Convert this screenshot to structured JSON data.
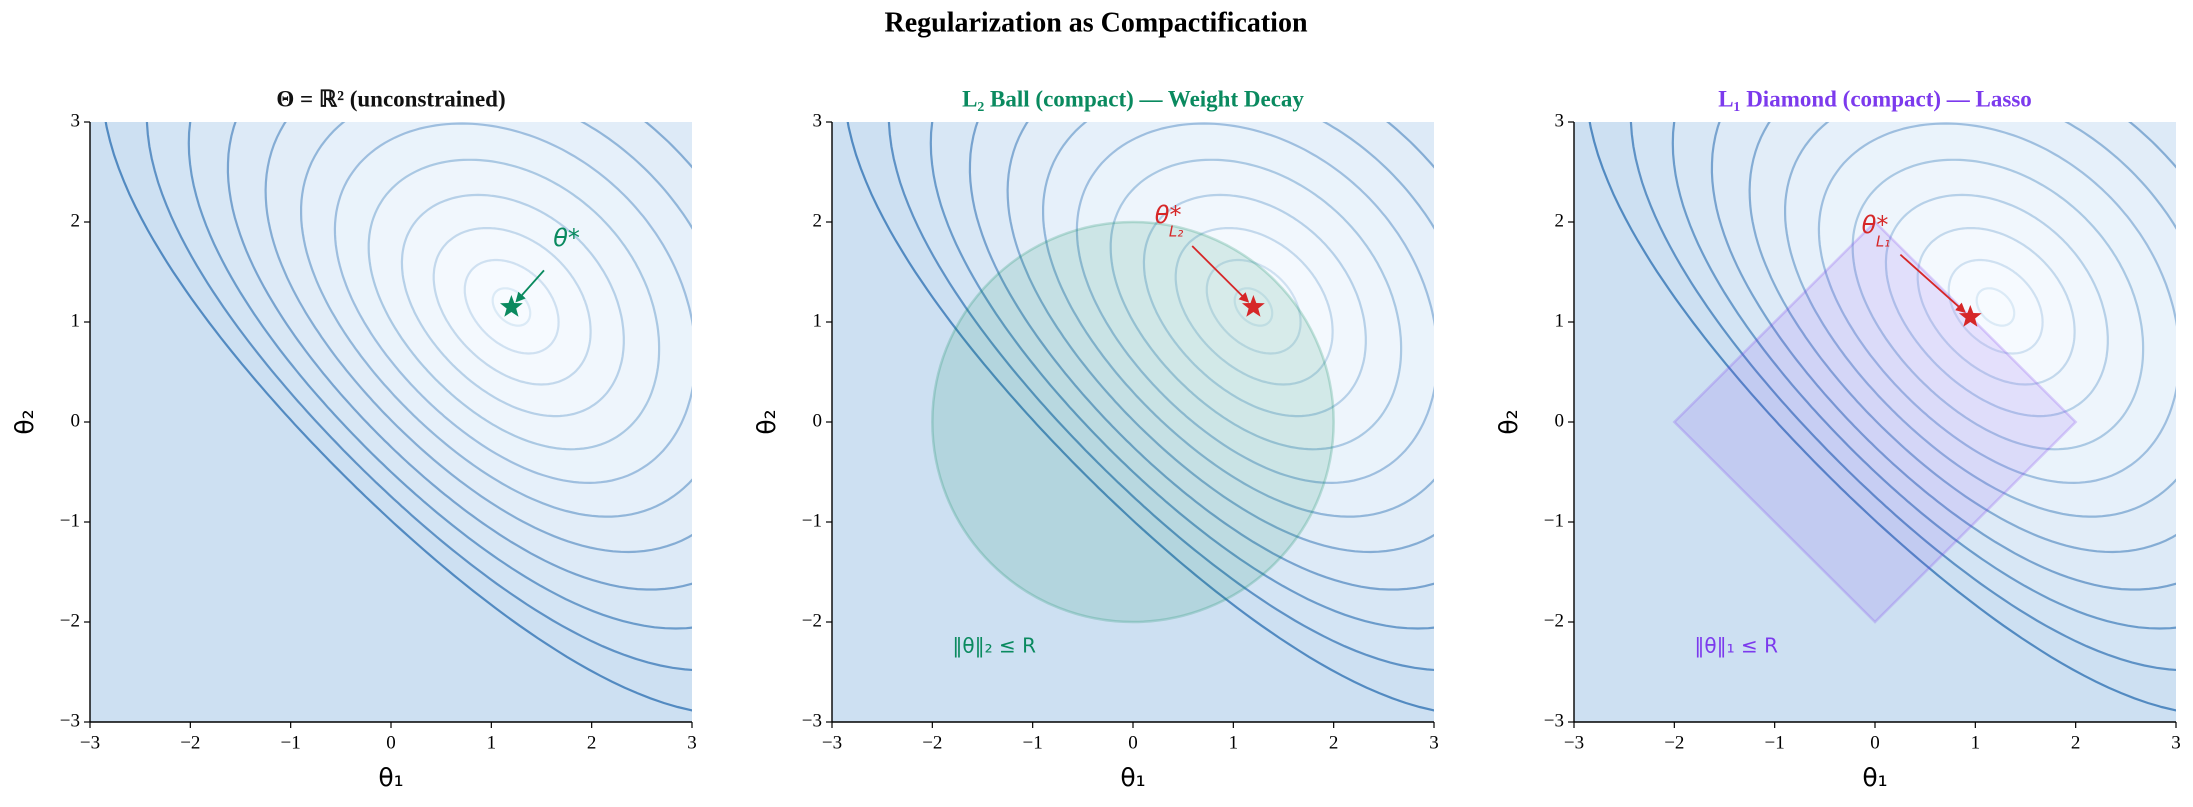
{
  "title": "Regularization as Compactification",
  "chart_data": [
    {
      "type": "contour",
      "title": "Θ = ℝ² (unconstrained)",
      "title_color": "#111111",
      "xlabel": "θ₁",
      "ylabel": "θ₂",
      "xlim": [
        -3,
        3
      ],
      "ylim": [
        -3,
        3
      ],
      "xticks": [
        {
          "value": -3,
          "label": "−3"
        },
        {
          "value": -2,
          "label": "−2"
        },
        {
          "value": -1,
          "label": "−1"
        },
        0,
        1,
        2,
        3
      ],
      "yticks": [
        {
          "value": -3,
          "label": "−3"
        },
        {
          "value": -2,
          "label": "−2"
        },
        {
          "value": -1,
          "label": "−1"
        },
        0,
        1,
        2,
        3
      ],
      "optimum": {
        "x": 1.2,
        "y": 1.15,
        "color": "#0a8a5f",
        "label": "θ*"
      }
    },
    {
      "type": "contour",
      "title": "L₂ Ball (compact) — Weight Decay",
      "title_color": "#0a8a5f",
      "xlabel": "θ₁",
      "ylabel": "θ₂",
      "xlim": [
        -3,
        3
      ],
      "ylim": [
        -3,
        3
      ],
      "xticks": [
        {
          "value": -3,
          "label": "−3"
        },
        {
          "value": -2,
          "label": "−2"
        },
        {
          "value": -1,
          "label": "−1"
        },
        0,
        1,
        2,
        3
      ],
      "yticks": [
        {
          "value": -3,
          "label": "−3"
        },
        {
          "value": -2,
          "label": "−2"
        },
        {
          "value": -1,
          "label": "−1"
        },
        0,
        1,
        2,
        3
      ],
      "region": {
        "shape": "circle",
        "radius": 2,
        "color": "#0a8a5f",
        "label": "‖θ‖₂ ≤ R"
      },
      "optimum": {
        "x": 1.2,
        "y": 1.15,
        "color": "#d62728",
        "label": "θ*",
        "label_sub": "L₂"
      }
    },
    {
      "type": "contour",
      "title": "L₁ Diamond (compact) — Lasso",
      "title_color": "#7c3aed",
      "xlabel": "θ₁",
      "ylabel": "θ₂",
      "xlim": [
        -3,
        3
      ],
      "ylim": [
        -3,
        3
      ],
      "xticks": [
        {
          "value": -3,
          "label": "−3"
        },
        {
          "value": -2,
          "label": "−2"
        },
        {
          "value": -1,
          "label": "−1"
        },
        0,
        1,
        2,
        3
      ],
      "yticks": [
        {
          "value": -3,
          "label": "−3"
        },
        {
          "value": -2,
          "label": "−2"
        },
        {
          "value": -1,
          "label": "−1"
        },
        0,
        1,
        2,
        3
      ],
      "region": {
        "shape": "diamond",
        "radius": 2,
        "color": "#7c3aed",
        "label": "‖θ‖₁ ≤ R"
      },
      "optimum": {
        "x": 0.95,
        "y": 1.05,
        "color": "#d62728",
        "label": "θ*",
        "label_sub": "L₁"
      }
    }
  ]
}
